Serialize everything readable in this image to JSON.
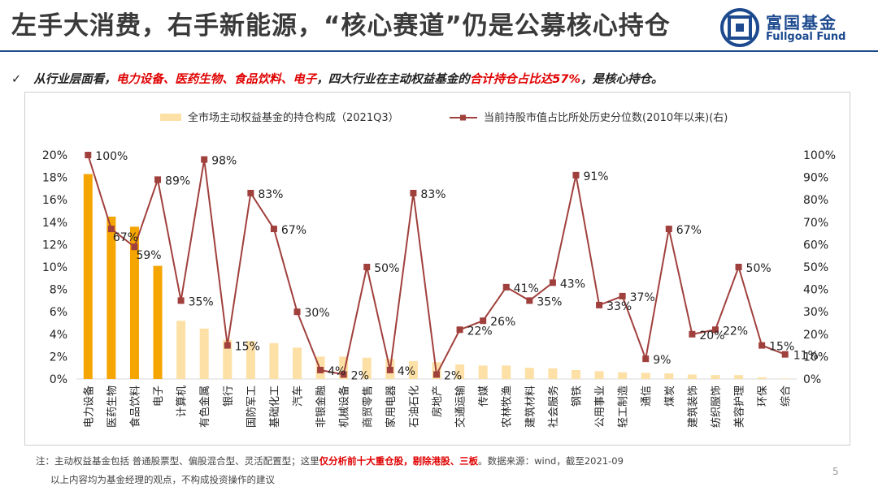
{
  "slide": {
    "title": "左手大消费，右手新能源，“核心赛道”仍是公募核心持仓",
    "logo_cn": "富国基金",
    "logo_en": "Fullgoal Fund",
    "check_mark": "✓",
    "subtitle_parts": [
      {
        "text": "从行业层面看，",
        "red": false
      },
      {
        "text": "电力设备、医药生物、食品饮料、电子",
        "red": true
      },
      {
        "text": "，四大行业在主动权益基金的",
        "red": false
      },
      {
        "text": "合计持仓占比达57%",
        "red": true
      },
      {
        "text": "，是核心持仓。",
        "red": false
      }
    ],
    "note_prefix": "注：主动权益基金包括 普通股票型、偏股混合型、灵活配置型；这里",
    "note_red": "仅分析前十大重仓股，剔除港股、三板",
    "note_suffix": "。数据来源：wind，截至2021-09",
    "disclaimer": "以上内容均为基金经理的观点，不构成投资操作的建议",
    "page_number": "5"
  },
  "colors": {
    "bar_highlight": "#f5a500",
    "bar_normal": "#fde0a6",
    "line": "#a0403d",
    "brand": "#1d4a8f",
    "accent_red": "#e00000"
  },
  "chart_data": {
    "type": "bar+line",
    "legend": [
      "全市场主动权益基金的持仓构成（2021Q3）",
      "当前持股市值占比所处历史分位数(2010年以来)(右)"
    ],
    "legend_position": "top-center",
    "categories": [
      "电力设备",
      "医药生物",
      "食品饮料",
      "电子",
      "计算机",
      "有色金属",
      "银行",
      "国防军工",
      "基础化工",
      "汽车",
      "非银金融",
      "机械设备",
      "商贸零售",
      "家用电器",
      "石油石化",
      "房地产",
      "交通运输",
      "传媒",
      "农林牧渔",
      "建筑材料",
      "社会服务",
      "钢铁",
      "公用事业",
      "轻工制造",
      "通信",
      "煤炭",
      "建筑装饰",
      "纺织服饰",
      "美容护理",
      "环保",
      "综合"
    ],
    "highlight_count": 4,
    "series": [
      {
        "name": "全市场主动权益基金的持仓构成（2021Q3）",
        "type": "bar",
        "axis": "left",
        "values": [
          18.3,
          14.5,
          13.6,
          10.1,
          5.2,
          4.5,
          3.5,
          3.4,
          3.2,
          2.8,
          2.0,
          2.0,
          1.9,
          1.8,
          1.6,
          1.5,
          1.3,
          1.2,
          1.2,
          1.0,
          0.95,
          0.8,
          0.7,
          0.6,
          0.55,
          0.5,
          0.4,
          0.35,
          0.35,
          0.15,
          0.05
        ]
      },
      {
        "name": "当前持股市值占比所处历史分位数(2010年以来)(右)",
        "type": "line",
        "axis": "right",
        "values": [
          100,
          67,
          59,
          89,
          35,
          98,
          15,
          83,
          67,
          30,
          4,
          2,
          50,
          4,
          83,
          2,
          22,
          26,
          41,
          35,
          43,
          91,
          33,
          37,
          9,
          67,
          20,
          22,
          50,
          15,
          11
        ]
      }
    ],
    "data_labels": [
      "100%",
      "67%",
      "59%",
      "89%",
      "35%",
      "98%",
      "15%",
      "83%",
      "67%",
      "30%",
      "4%",
      "2%",
      "50%",
      "4%",
      "83%",
      "2%",
      "22%",
      "26%",
      "41%",
      "35%",
      "43%",
      "91%",
      "33%",
      "37%",
      "9%",
      "67%",
      "20%",
      "22%",
      "50%",
      "15%",
      "11%"
    ],
    "left_axis": {
      "min": 0,
      "max": 20,
      "step": 2,
      "ticks": [
        "0%",
        "2%",
        "4%",
        "6%",
        "8%",
        "10%",
        "12%",
        "14%",
        "16%",
        "18%",
        "20%"
      ]
    },
    "right_axis": {
      "min": 0,
      "max": 100,
      "step": 10,
      "ticks": [
        "0%",
        "10%",
        "20%",
        "30%",
        "40%",
        "50%",
        "60%",
        "70%",
        "80%",
        "90%",
        "100%"
      ]
    },
    "grid": false
  }
}
